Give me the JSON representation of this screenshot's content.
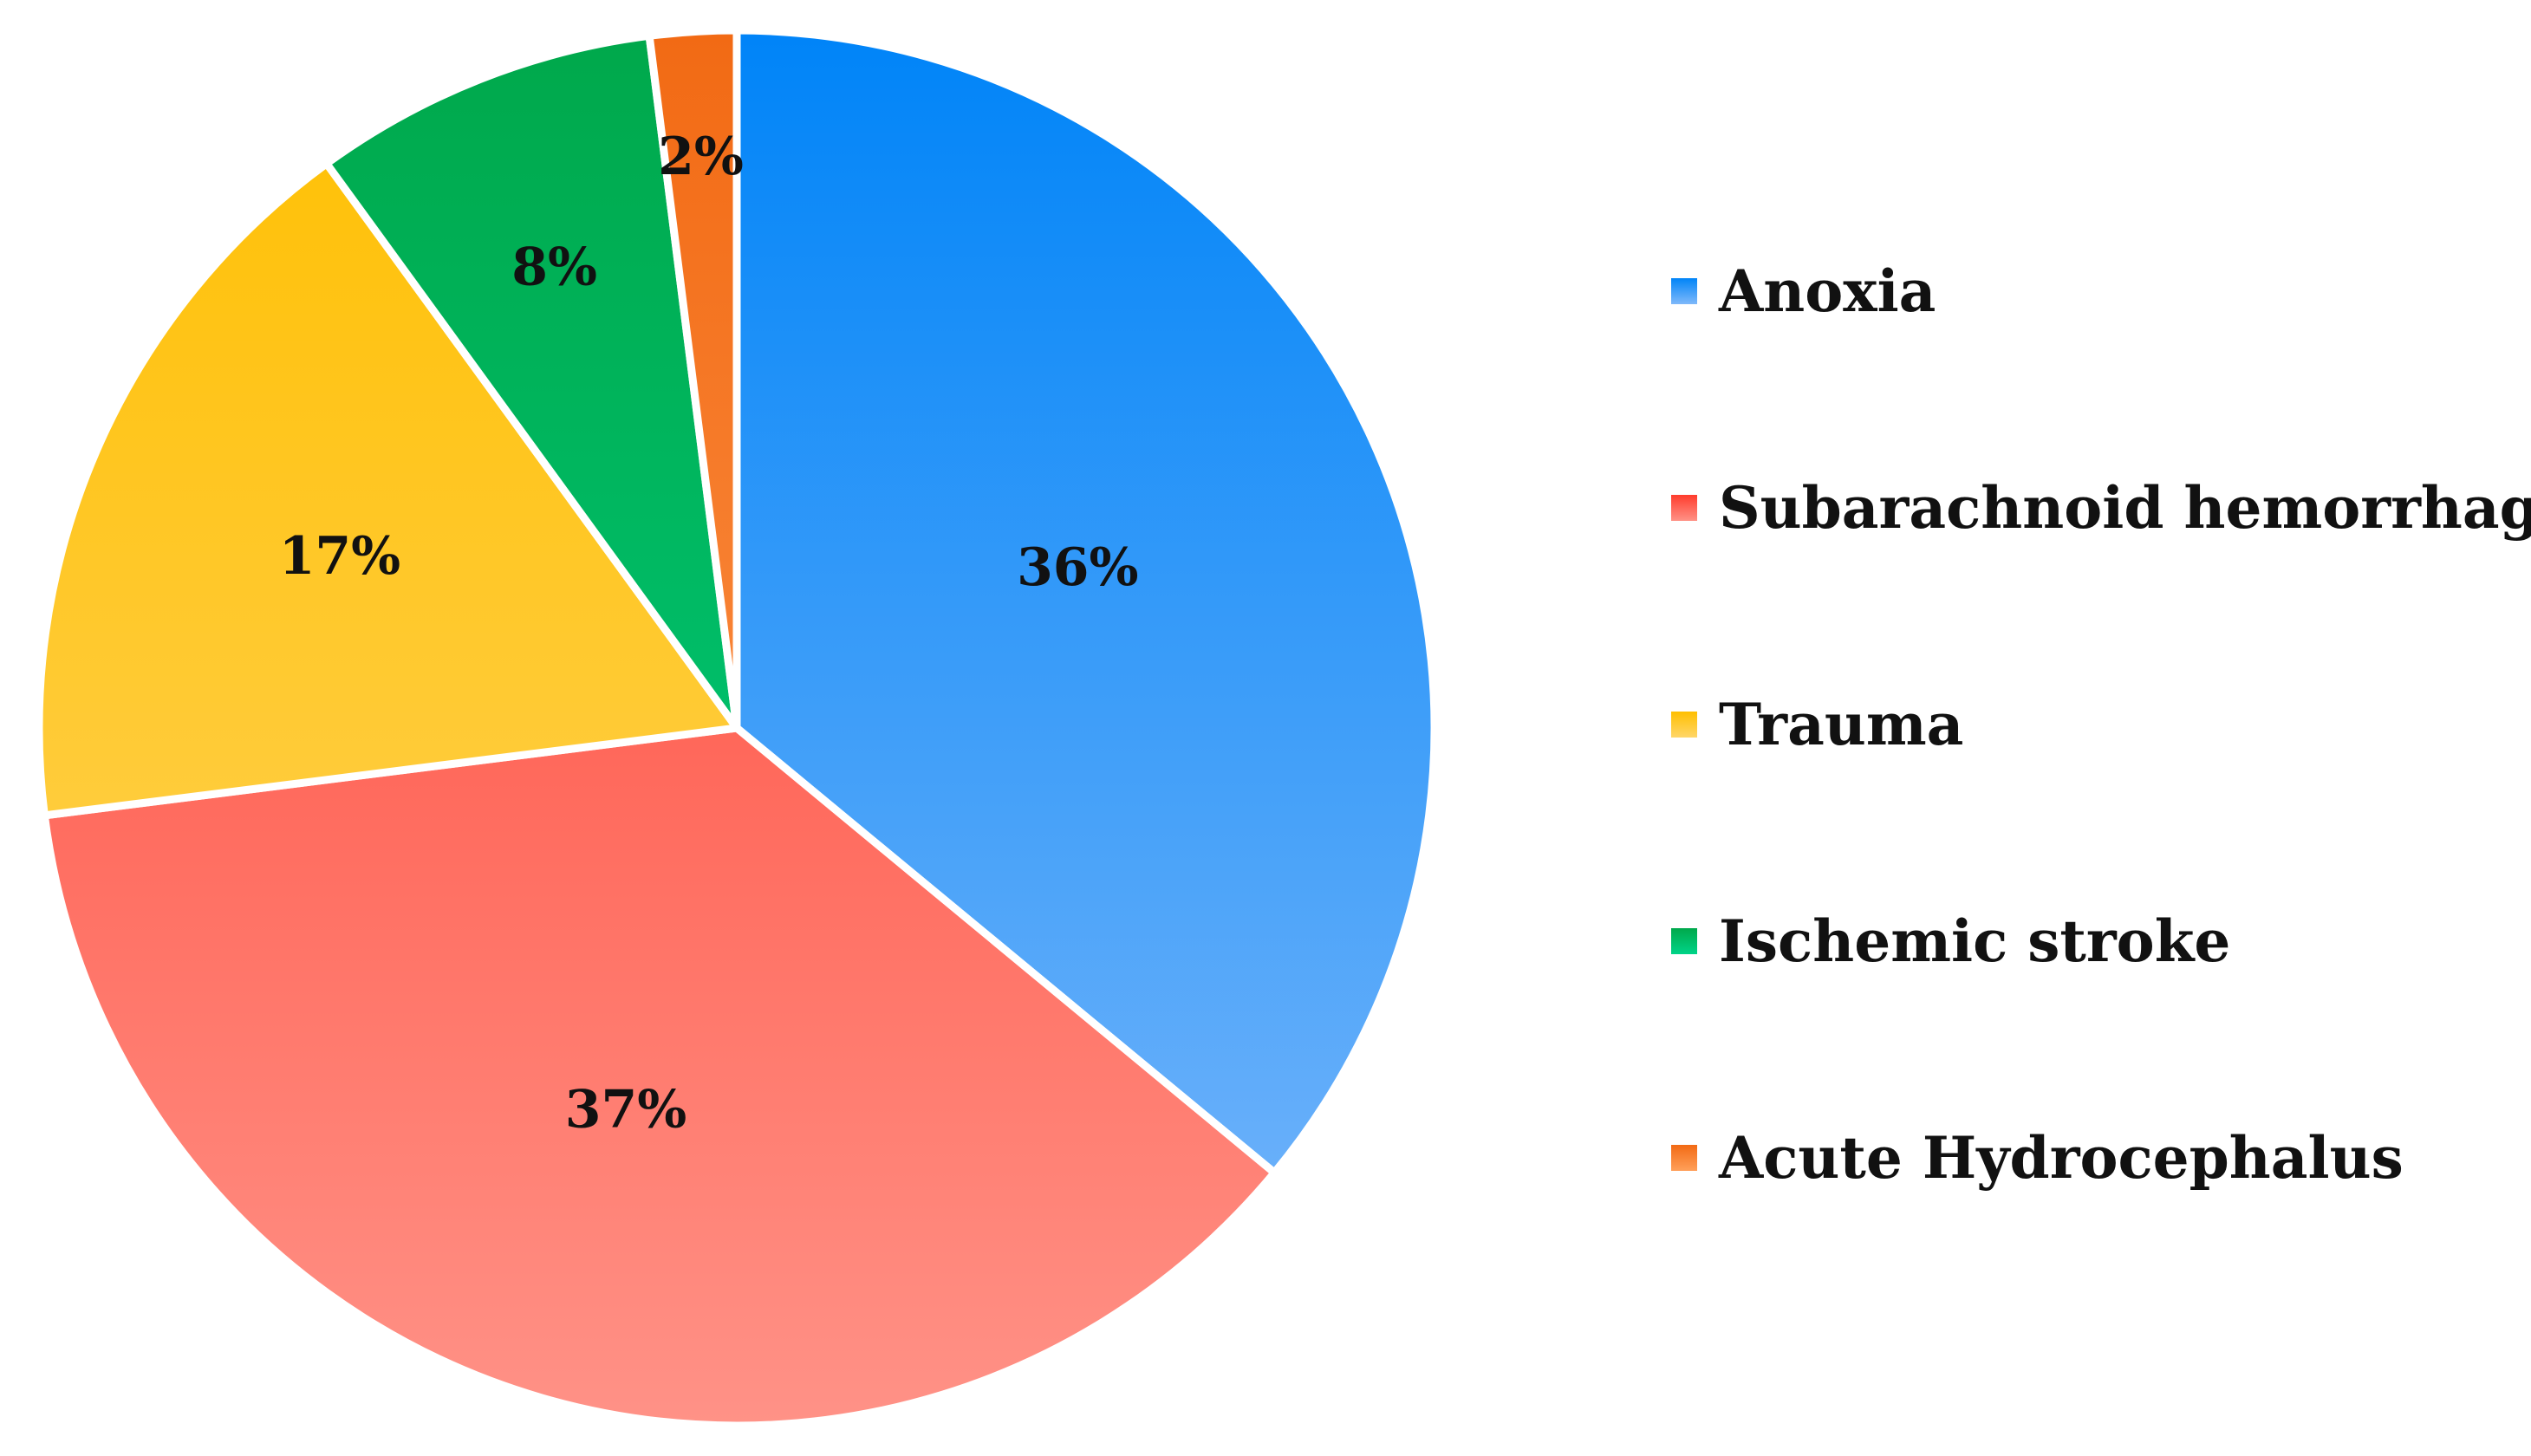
{
  "chart_data": {
    "type": "pie",
    "title": "",
    "categories": [
      "Anoxia",
      "Subarachnoid hemorrhage",
      "Trauma",
      "Ischemic stroke",
      "Acute Hydrocephalus"
    ],
    "values": [
      36,
      37,
      17,
      8,
      2
    ],
    "labels": [
      "36%",
      "37%",
      "17%",
      "8%",
      "2%"
    ],
    "colors": [
      [
        "#0084f8",
        "#7fb9fa"
      ],
      [
        "#ff3c2c",
        "#ff9287"
      ],
      [
        "#ffbf00",
        "#ffd669"
      ],
      [
        "#00a84b",
        "#00d488"
      ],
      [
        "#f26a14",
        "#ffa05a"
      ]
    ],
    "legend_position": "right",
    "start_angle": "top",
    "direction": "clockwise"
  }
}
